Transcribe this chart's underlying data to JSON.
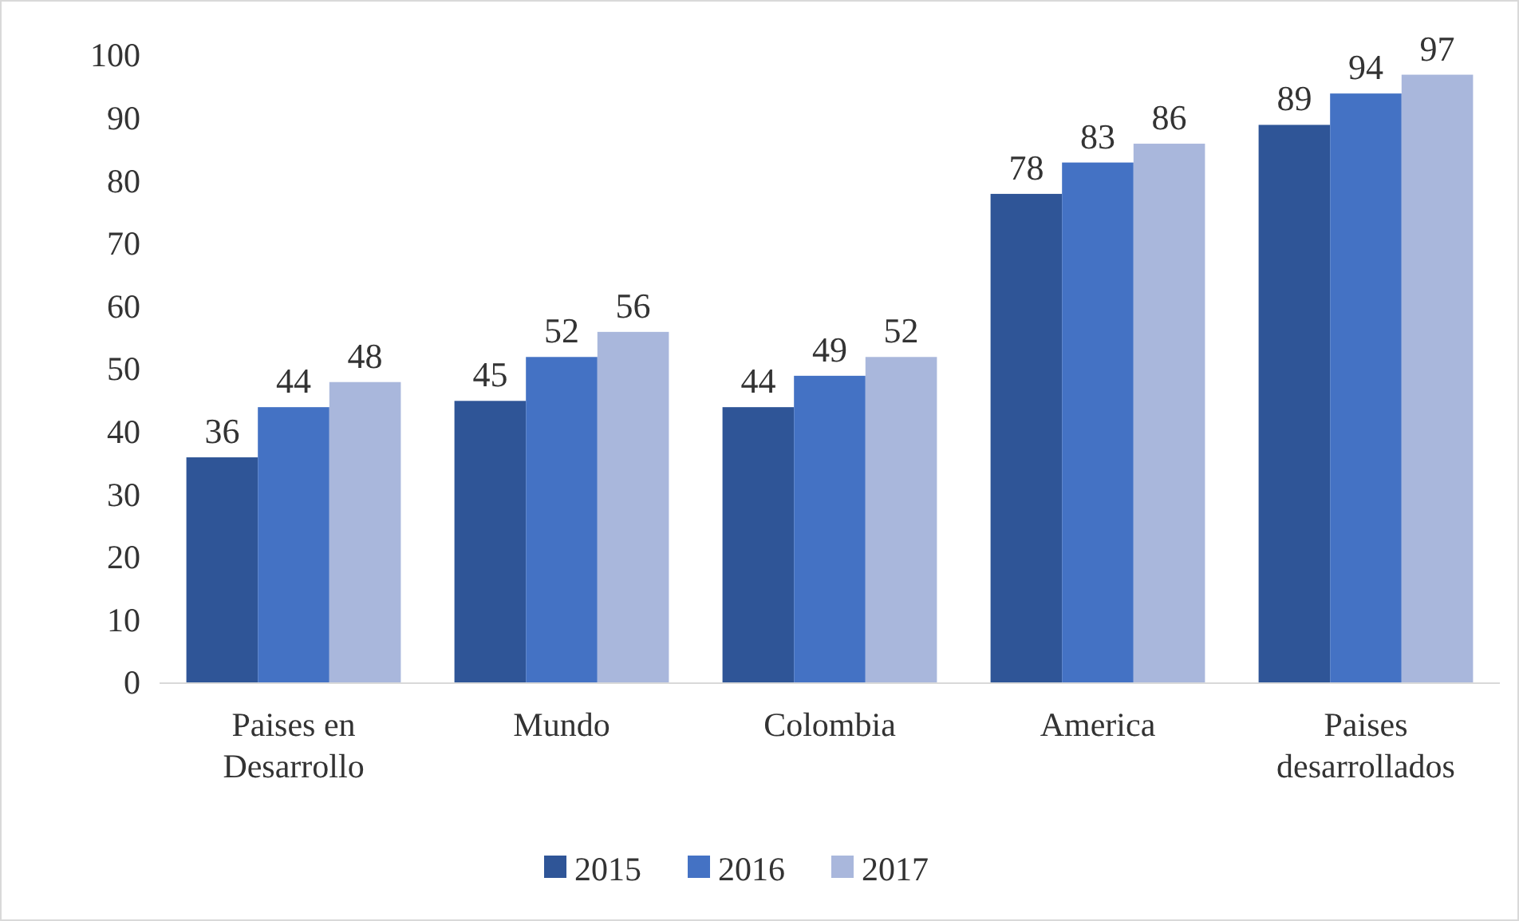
{
  "chart_data": {
    "type": "bar",
    "categories": [
      "Paises en Desarrollo",
      "Mundo",
      "Colombia",
      "America",
      "Paises desarrollados"
    ],
    "series": [
      {
        "name": "2015",
        "color": "#2f5597",
        "values": [
          36,
          45,
          44,
          78,
          89
        ]
      },
      {
        "name": "2016",
        "color": "#4472c4",
        "values": [
          44,
          52,
          49,
          83,
          94
        ]
      },
      {
        "name": "2017",
        "color": "#a9b7dc",
        "values": [
          48,
          56,
          52,
          86,
          97
        ]
      }
    ],
    "ylim": [
      0,
      100
    ],
    "yticks": [
      0,
      10,
      20,
      30,
      40,
      50,
      60,
      70,
      80,
      90,
      100
    ],
    "grid": false,
    "legend": "bottom",
    "data_labels": true
  }
}
